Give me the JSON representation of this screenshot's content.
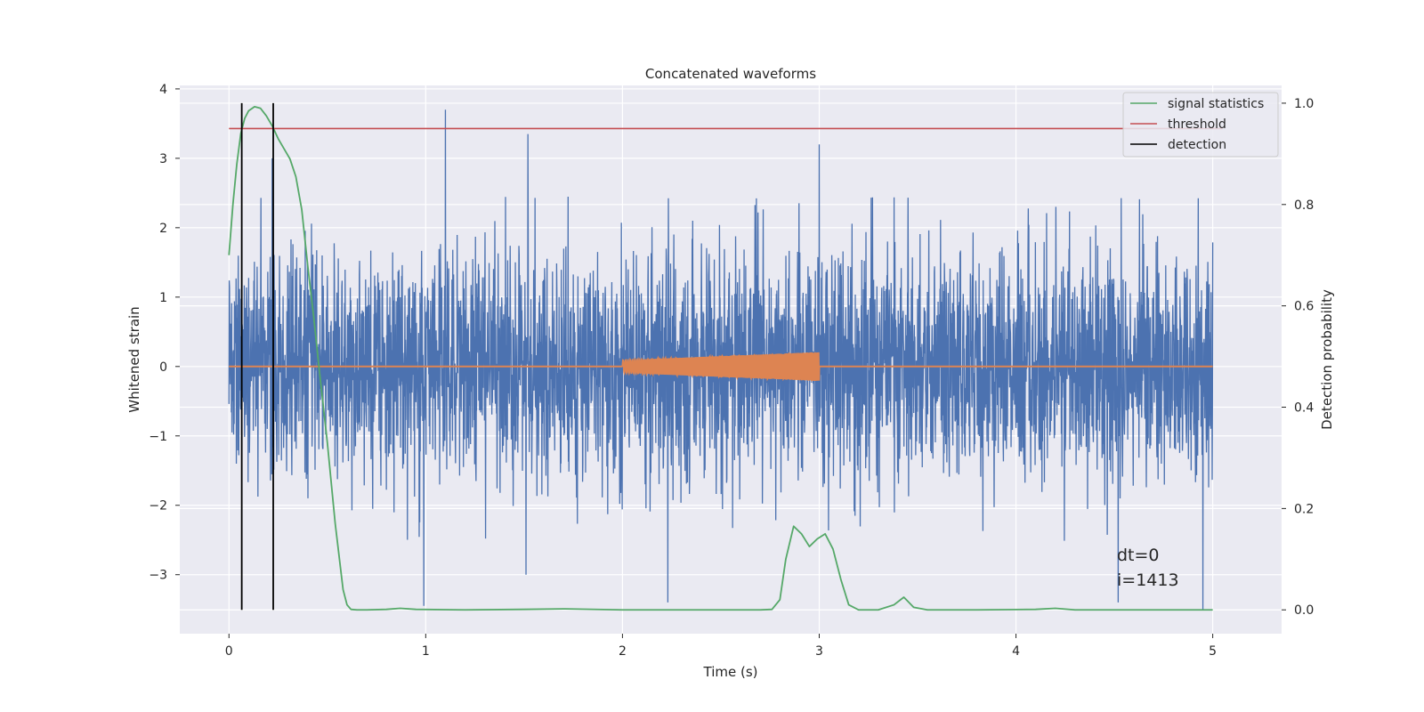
{
  "chart_data": {
    "type": "line",
    "title": "Concatenated waveforms",
    "xlabel": "Time (s)",
    "ylabel": "Whitened strain",
    "y2label": "Detection probability",
    "xlim": [
      -0.25,
      5.35
    ],
    "ylim": [
      -3.85,
      4.05
    ],
    "y2lim": [
      -0.047,
      1.035
    ],
    "x_ticks": [
      0,
      1,
      2,
      3,
      4,
      5
    ],
    "y_ticks": [
      -3,
      -2,
      -1,
      0,
      1,
      2,
      3,
      4
    ],
    "y2_ticks": [
      0.0,
      0.2,
      0.4,
      0.6,
      0.8,
      1.0
    ],
    "grid": true,
    "legend_position": "top-right",
    "legend": [
      {
        "label": "signal statistics",
        "color": "#55a868"
      },
      {
        "label": "threshold",
        "color": "#c44e52"
      },
      {
        "label": "detection",
        "color": "#000000"
      }
    ],
    "series": [
      {
        "name": "whitened strain noise",
        "axis": "left",
        "color": "#4c72b0",
        "x_range": [
          0,
          5
        ],
        "typical_amplitude": 1.5,
        "extremes": [
          {
            "x": 0.22,
            "y": 3.0
          },
          {
            "x": 1.1,
            "y": 3.7
          },
          {
            "x": 1.52,
            "y": 3.35
          },
          {
            "x": 3.0,
            "y": 3.2
          },
          {
            "x": 1.51,
            "y": -3.0
          },
          {
            "x": 2.23,
            "y": -3.4
          },
          {
            "x": 0.99,
            "y": -3.45
          },
          {
            "x": 4.95,
            "y": -3.5
          },
          {
            "x": 4.52,
            "y": -3.4
          }
        ]
      },
      {
        "name": "injected signal",
        "axis": "left",
        "color": "#dd8452",
        "x_range": [
          0,
          5
        ],
        "chirp_start": 2.0,
        "chirp_end": 3.0,
        "amplitude_start": 0.09,
        "amplitude_end": 0.21
      },
      {
        "name": "signal statistics",
        "axis": "right",
        "color": "#55a868",
        "x": [
          0,
          0.02,
          0.04,
          0.06,
          0.08,
          0.1,
          0.13,
          0.16,
          0.19,
          0.22,
          0.25,
          0.28,
          0.31,
          0.34,
          0.37,
          0.4,
          0.43,
          0.46,
          0.5,
          0.54,
          0.58,
          0.6,
          0.62,
          0.65,
          0.7,
          0.8,
          0.87,
          0.95,
          1.2,
          1.5,
          1.7,
          2.0,
          2.4,
          2.7,
          2.76,
          2.8,
          2.83,
          2.87,
          2.91,
          2.95,
          2.99,
          3.03,
          3.07,
          3.11,
          3.15,
          3.2,
          3.3,
          3.38,
          3.43,
          3.48,
          3.55,
          3.8,
          4.1,
          4.2,
          4.3,
          4.6,
          5.0
        ],
        "y": [
          0.7,
          0.8,
          0.88,
          0.94,
          0.97,
          0.985,
          0.993,
          0.99,
          0.975,
          0.955,
          0.93,
          0.91,
          0.89,
          0.855,
          0.79,
          0.68,
          0.58,
          0.47,
          0.33,
          0.17,
          0.04,
          0.01,
          0.001,
          0.0,
          0.0,
          0.001,
          0.003,
          0.001,
          0.0,
          0.001,
          0.002,
          0.0,
          0.0,
          0.0,
          0.001,
          0.02,
          0.1,
          0.165,
          0.15,
          0.125,
          0.14,
          0.15,
          0.12,
          0.06,
          0.01,
          0.0,
          0.0,
          0.01,
          0.025,
          0.005,
          0.0,
          0.0,
          0.001,
          0.003,
          0.0,
          0.0,
          0.0
        ]
      },
      {
        "name": "threshold",
        "axis": "right",
        "color": "#c44e52",
        "x": [
          0,
          5.05
        ],
        "y": [
          0.95,
          0.95
        ]
      },
      {
        "name": "detection",
        "axis": "right",
        "color": "#000000",
        "type": "vlines",
        "x": [
          0.065,
          0.225
        ],
        "ymin": 0.0,
        "ymax": 1.0
      }
    ],
    "annotations": [
      "dt=0",
      "i=1413"
    ],
    "annotation_position": "bottom-right"
  }
}
